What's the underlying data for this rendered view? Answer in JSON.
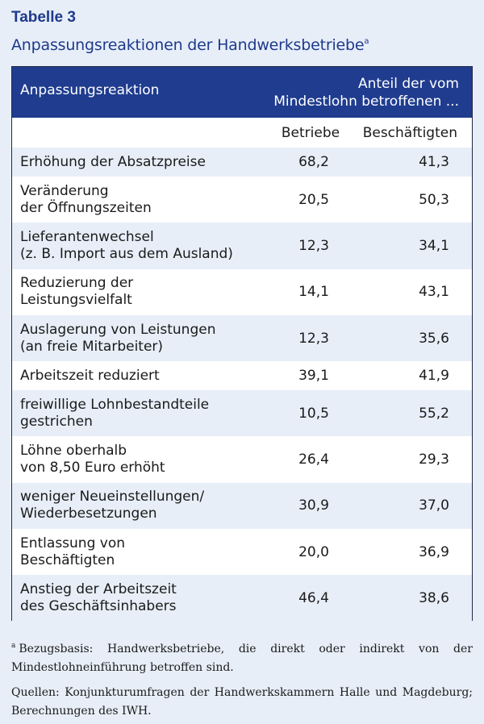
{
  "label": "Tabelle 3",
  "title": "Anpassungsreaktionen der Handwerksbetriebe",
  "title_footnote_marker": "a",
  "header": {
    "col1": "Anpassungsreaktion",
    "group_line1": "Anteil der vom",
    "group_line2": "Mindestlohn betroffenen ...",
    "sub1": "Betriebe",
    "sub2": "Beschäftigten"
  },
  "rows": [
    {
      "line1": "Erhöhung der Absatzpreise",
      "line2": "",
      "betriebe": "68,2",
      "beschaeftigte": "41,3"
    },
    {
      "line1": "Veränderung",
      "line2": "der Öffnungszeiten",
      "betriebe": "20,5",
      "beschaeftigte": "50,3"
    },
    {
      "line1": "Lieferantenwechsel",
      "line2": "(z. B. Import aus dem Ausland)",
      "betriebe": "12,3",
      "beschaeftigte": "34,1"
    },
    {
      "line1": "Reduzierung der",
      "line2": "Leistungsvielfalt",
      "betriebe": "14,1",
      "beschaeftigte": "43,1"
    },
    {
      "line1": "Auslagerung von Leistungen",
      "line2": "(an freie Mitarbeiter)",
      "betriebe": "12,3",
      "beschaeftigte": "35,6"
    },
    {
      "line1": "Arbeitszeit reduziert",
      "line2": "",
      "betriebe": "39,1",
      "beschaeftigte": "41,9"
    },
    {
      "line1": "freiwillige Lohnbestandteile",
      "line2": "gestrichen",
      "betriebe": "10,5",
      "beschaeftigte": "55,2"
    },
    {
      "line1": "Löhne oberhalb",
      "line2": "von 8,50 Euro erhöht",
      "betriebe": "26,4",
      "beschaeftigte": "29,3"
    },
    {
      "line1": "weniger Neueinstellungen/",
      "line2": "Wiederbesetzungen",
      "betriebe": "30,9",
      "beschaeftigte": "37,0"
    },
    {
      "line1": "Entlassung von",
      "line2": "Beschäftigten",
      "betriebe": "20,0",
      "beschaeftigte": "36,9"
    },
    {
      "line1": "Anstieg der Arbeitszeit",
      "line2": "des Geschäftsinhabers",
      "betriebe": "46,4",
      "beschaeftigte": "38,6"
    }
  ],
  "footnote": {
    "marker": "a",
    "text": "Bezugsbasis: Handwerksbetriebe, die direkt oder indirekt von der Mindestlohneinführung betroffen sind."
  },
  "sources": "Quellen: Konjunkturumfragen der Handwerkskammern Halle und Magdeburg; Berechnungen des IWH."
}
